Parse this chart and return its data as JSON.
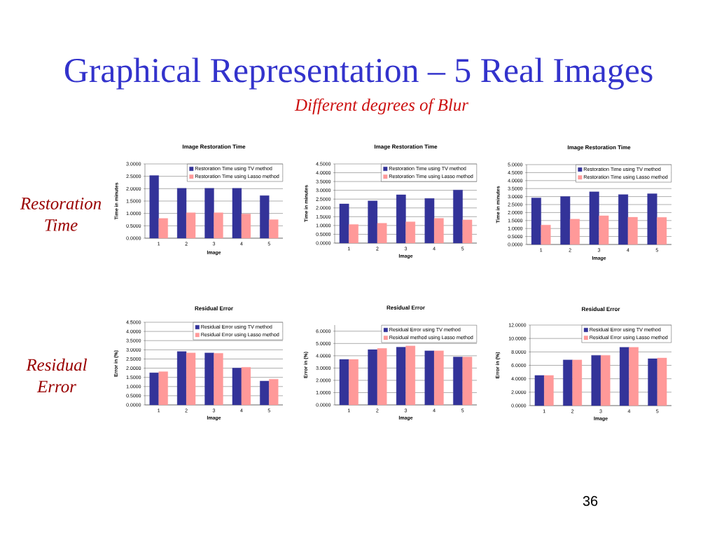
{
  "chart_data": [
    {
      "type": "other",
      "title": "Graphical Representation – 5 Real Images",
      "subtitle": "Different degrees of Blur",
      "annotations": [
        "Restoration Time",
        "Residual Error",
        "36"
      ]
    },
    {
      "type": "bar",
      "title": "Image Restoration Time",
      "xlabel": "Image",
      "ylabel": "Time in minutes",
      "categories": [
        "1",
        "2",
        "3",
        "4",
        "5"
      ],
      "series": [
        {
          "name": "Restoration Time using TV method",
          "color": "#333399",
          "values": [
            2.53,
            2.02,
            2.02,
            2.02,
            1.72
          ]
        },
        {
          "name": "Restoration Time using Lasso method",
          "color": "#ff9999",
          "values": [
            0.8,
            1.03,
            1.03,
            0.98,
            0.75
          ]
        }
      ],
      "ylim": [
        0,
        3
      ],
      "yticks": [
        {
          "value": 0,
          "label": "0.0000"
        },
        {
          "value": 0.5,
          "label": "0.5000"
        },
        {
          "value": 1,
          "label": "1.0000"
        },
        {
          "value": 1.5,
          "label": "1.5000"
        },
        {
          "value": 2,
          "label": "2.0000"
        },
        {
          "value": 2.5,
          "label": "2.5000"
        },
        {
          "value": 3,
          "label": "3.0000"
        }
      ],
      "grid": "y",
      "legend": "top right"
    },
    {
      "type": "bar",
      "title": "Image Restoration Time",
      "xlabel": "Image",
      "ylabel": "Time in minutes",
      "categories": [
        "1",
        "2",
        "3",
        "4",
        "5"
      ],
      "series": [
        {
          "name": "Restoration Time using TV method",
          "color": "#333399",
          "values": [
            2.23,
            2.4,
            2.75,
            2.54,
            3.02
          ]
        },
        {
          "name": "Restoration Time using Lasso method",
          "color": "#ff9999",
          "values": [
            1.06,
            1.13,
            1.21,
            1.41,
            1.32
          ]
        }
      ],
      "ylim": [
        0,
        4.5
      ],
      "yticks": [
        {
          "value": 0,
          "label": "0.0000"
        },
        {
          "value": 0.5,
          "label": "0.5000"
        },
        {
          "value": 1,
          "label": "1.0000"
        },
        {
          "value": 1.5,
          "label": "1.5000"
        },
        {
          "value": 2,
          "label": "2.0000"
        },
        {
          "value": 2.5,
          "label": "2.5000"
        },
        {
          "value": 3,
          "label": "3.0000"
        },
        {
          "value": 3.5,
          "label": "3.5000"
        },
        {
          "value": 4,
          "label": "4.0000"
        },
        {
          "value": 4.5,
          "label": "4.5000"
        }
      ],
      "grid": "y",
      "legend": "top right"
    },
    {
      "type": "bar",
      "title": "Image Restoration Time",
      "xlabel": "Image",
      "ylabel": "Time in minutes",
      "categories": [
        "1",
        "2",
        "3",
        "4",
        "5"
      ],
      "series": [
        {
          "name": "Restoration Time using TV method",
          "color": "#333399",
          "values": [
            2.92,
            3.0,
            3.3,
            3.13,
            3.18
          ]
        },
        {
          "name": "Restoration Time using Lasso method",
          "color": "#ff9999",
          "values": [
            1.22,
            1.59,
            1.8,
            1.71,
            1.7
          ]
        }
      ],
      "ylim": [
        0,
        5
      ],
      "yticks": [
        {
          "value": 0,
          "label": "0.0000"
        },
        {
          "value": 0.5,
          "label": "0.5000"
        },
        {
          "value": 1,
          "label": "1.0000"
        },
        {
          "value": 1.5,
          "label": "1.5000"
        },
        {
          "value": 2,
          "label": "2.0000"
        },
        {
          "value": 2.5,
          "label": "2.5000"
        },
        {
          "value": 3,
          "label": "3.0000"
        },
        {
          "value": 3.5,
          "label": "3.5000"
        },
        {
          "value": 4,
          "label": "4.0000"
        },
        {
          "value": 4.5,
          "label": "4.5000"
        },
        {
          "value": 5,
          "label": "5.0000"
        }
      ],
      "grid": "y",
      "legend": "top right"
    },
    {
      "type": "bar",
      "title": "Residual Error",
      "xlabel": "Image",
      "ylabel": "Error in (%)",
      "categories": [
        "1",
        "2",
        "3",
        "4",
        "5"
      ],
      "series": [
        {
          "name": "Residual Error using TV method",
          "color": "#333399",
          "values": [
            1.75,
            2.91,
            2.83,
            2.01,
            1.3
          ]
        },
        {
          "name": "Residual Error using Lasso method",
          "color": "#ff9999",
          "values": [
            1.81,
            2.83,
            2.81,
            2.05,
            1.4
          ]
        }
      ],
      "ylim": [
        0,
        4.5
      ],
      "yticks": [
        {
          "value": 0,
          "label": "0.0000"
        },
        {
          "value": 0.5,
          "label": "0.5000"
        },
        {
          "value": 1,
          "label": "1.0000"
        },
        {
          "value": 1.5,
          "label": "1.5000"
        },
        {
          "value": 2,
          "label": "2.0000"
        },
        {
          "value": 2.5,
          "label": "2.5000"
        },
        {
          "value": 3,
          "label": "3.0000"
        },
        {
          "value": 3.5,
          "label": "3.5000"
        },
        {
          "value": 4,
          "label": "4.0000"
        },
        {
          "value": 4.5,
          "label": "4.5000"
        }
      ],
      "grid": "y",
      "legend": "top right"
    },
    {
      "type": "bar",
      "title": "Residual Error",
      "xlabel": "Image",
      "ylabel": "Error in (%)",
      "categories": [
        "1",
        "2",
        "3",
        "4",
        "5"
      ],
      "series": [
        {
          "name": "Residual Error using TV method",
          "color": "#333399",
          "values": [
            3.7,
            4.5,
            4.7,
            4.4,
            3.9
          ]
        },
        {
          "name": "Residual method using Lasso method",
          "color": "#ff9999",
          "values": [
            3.7,
            4.6,
            4.8,
            4.4,
            3.9
          ]
        }
      ],
      "ylim": [
        0,
        6.5
      ],
      "yticks": [
        {
          "value": 0,
          "label": "0.0000"
        },
        {
          "value": 1,
          "label": "1.0000"
        },
        {
          "value": 2,
          "label": "2.0000"
        },
        {
          "value": 3,
          "label": "3.0000"
        },
        {
          "value": 4,
          "label": "4.0000"
        },
        {
          "value": 5,
          "label": "5.0000"
        },
        {
          "value": 6,
          "label": "6.0000"
        }
      ],
      "grid": "y",
      "legend": "top right"
    },
    {
      "type": "bar",
      "title": "Residual Error",
      "xlabel": "Image",
      "ylabel": "Error in (%)",
      "categories": [
        "1",
        "2",
        "3",
        "4",
        "5"
      ],
      "series": [
        {
          "name": "Residual Error using TV method",
          "color": "#333399",
          "values": [
            4.5,
            6.8,
            7.5,
            8.7,
            7.0
          ]
        },
        {
          "name": "Residual Error using Lasso method",
          "color": "#ff9999",
          "values": [
            4.5,
            6.8,
            7.5,
            8.7,
            7.1
          ]
        }
      ],
      "ylim": [
        0,
        12
      ],
      "yticks": [
        {
          "value": 0,
          "label": "0.0000"
        },
        {
          "value": 2,
          "label": "2.0000"
        },
        {
          "value": 4,
          "label": "4.0000"
        },
        {
          "value": 6,
          "label": "6.0000"
        },
        {
          "value": 8,
          "label": "8.0000"
        },
        {
          "value": 10,
          "label": "10.0000"
        },
        {
          "value": 12,
          "label": "12.0000"
        }
      ],
      "grid": "y",
      "legend": "top right"
    }
  ]
}
